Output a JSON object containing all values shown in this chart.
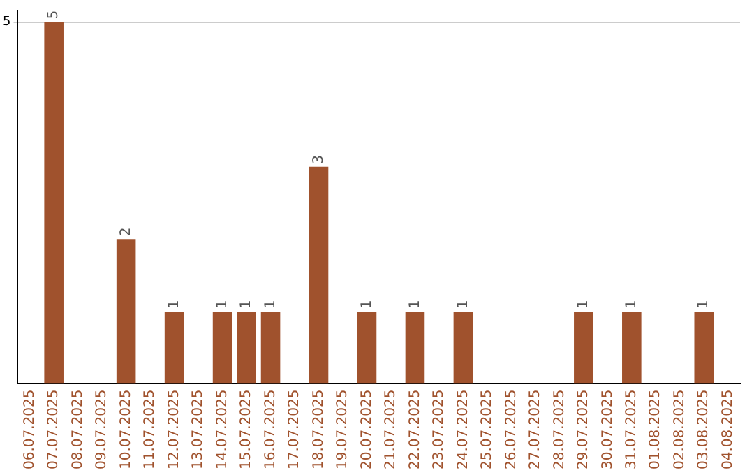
{
  "chart_data": {
    "type": "bar",
    "categories": [
      "06.07.2025",
      "07.07.2025",
      "08.07.2025",
      "09.07.2025",
      "10.07.2025",
      "11.07.2025",
      "12.07.2025",
      "13.07.2025",
      "14.07.2025",
      "15.07.2025",
      "16.07.2025",
      "17.07.2025",
      "18.07.2025",
      "19.07.2025",
      "20.07.2025",
      "21.07.2025",
      "22.07.2025",
      "23.07.2025",
      "24.07.2025",
      "25.07.2025",
      "26.07.2025",
      "27.07.2025",
      "28.07.2025",
      "29.07.2025",
      "30.07.2025",
      "31.07.2025",
      "01.08.2025",
      "02.08.2025",
      "03.08.2025",
      "04.08.2025"
    ],
    "values": [
      0,
      5,
      0,
      0,
      2,
      0,
      1,
      0,
      1,
      1,
      1,
      0,
      3,
      0,
      1,
      0,
      1,
      0,
      1,
      0,
      0,
      0,
      0,
      1,
      0,
      1,
      0,
      0,
      1,
      0
    ],
    "value_labels": [
      null,
      "5",
      null,
      null,
      "2",
      null,
      "1",
      null,
      "1",
      "1",
      "1",
      null,
      "3",
      null,
      "1",
      null,
      "1",
      null,
      "1",
      null,
      null,
      null,
      null,
      "1",
      null,
      "1",
      null,
      null,
      "1",
      null
    ],
    "color": "#a0522d",
    "ylim": [
      0,
      5.15
    ],
    "yticks": [
      5
    ],
    "grid": "y",
    "legend": false
  }
}
